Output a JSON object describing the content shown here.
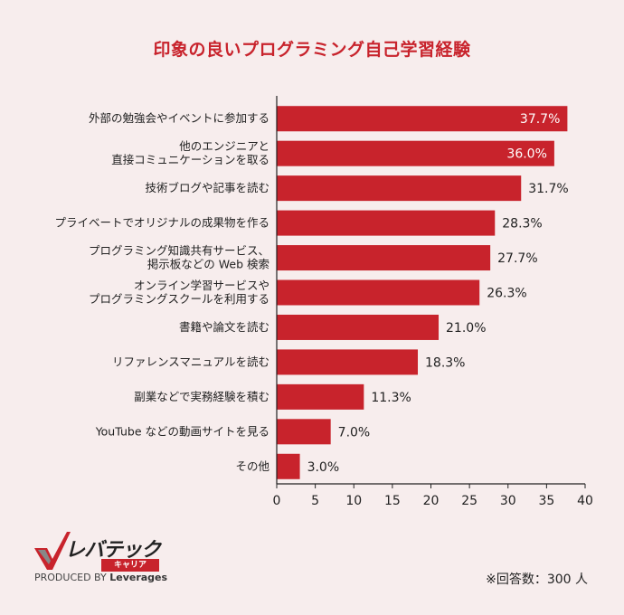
{
  "chart_data": {
    "type": "bar",
    "orientation": "horizontal",
    "title": "印象の良いプログラミング自己学習経験",
    "categories": [
      [
        "外部の勉強会やイベントに参加する"
      ],
      [
        "他のエンジニアと",
        "直接コミュニケーションを取る"
      ],
      [
        "技術ブログや記事を読む"
      ],
      [
        "プライベートでオリジナルの成果物を作る"
      ],
      [
        "プログラミング知識共有サービス、",
        "掲示板などの Web 検索"
      ],
      [
        "オンライン学習サービスや",
        "プログラミングスクールを利用する"
      ],
      [
        "書籍や論文を読む"
      ],
      [
        "リファレンスマニュアルを読む"
      ],
      [
        "副業などで実務経験を積む"
      ],
      [
        "YouTube などの動画サイトを見る"
      ],
      [
        "その他"
      ]
    ],
    "values": [
      37.7,
      36.0,
      31.7,
      28.3,
      27.7,
      26.3,
      21.0,
      18.3,
      11.3,
      7.0,
      3.0
    ],
    "value_labels": [
      "37.7%",
      "36.0%",
      "31.7%",
      "28.3%",
      "27.7%",
      "26.3%",
      "21.0%",
      "18.3%",
      "11.3%",
      "7.0%",
      "3.0%"
    ],
    "label_inside_from_index": 2,
    "xlim": [
      0,
      40
    ],
    "xticks": [
      0,
      5,
      10,
      15,
      20,
      25,
      30,
      35,
      40
    ],
    "unit": "%",
    "bar_color": "#c8232c"
  },
  "logo": {
    "brand": "レバテック",
    "sub": "キャリア",
    "produced_by": "PRODUCED BY",
    "company": "Leverages"
  },
  "note": "※回答数：300 人"
}
